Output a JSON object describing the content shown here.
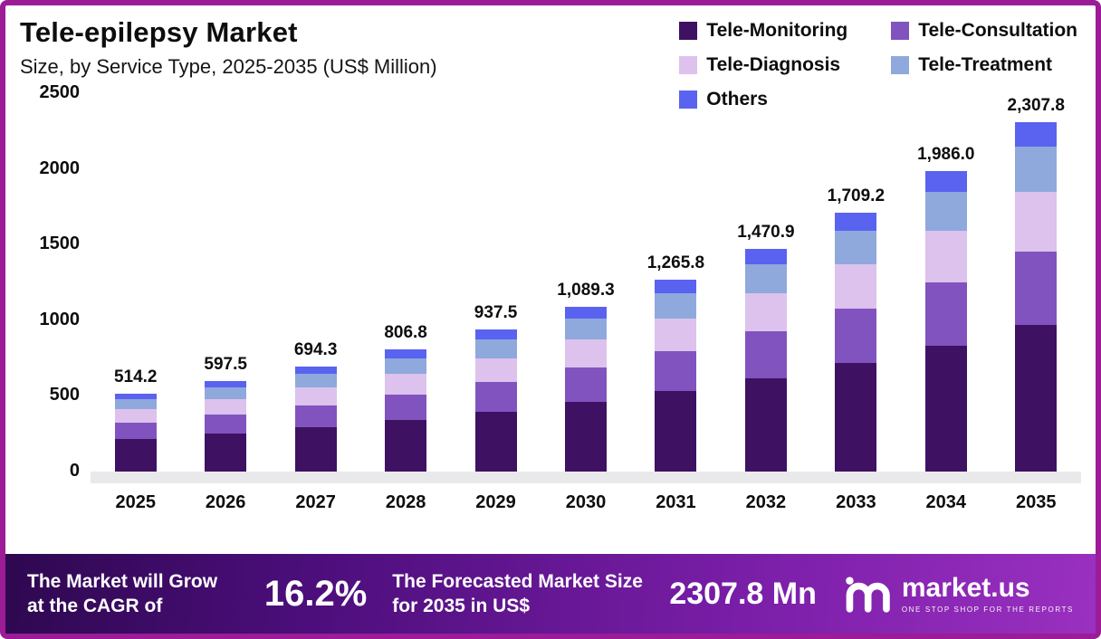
{
  "frame": {
    "border_color": "#9C1B96"
  },
  "header": {
    "title": "Tele-epilepsy Market",
    "subtitle": "Size, by Service Type, 2025-2035 (US$ Million)"
  },
  "banner": {
    "cagr_text": "The Market will Grow at the CAGR of",
    "cagr_value": "16.2%",
    "forecast_text": "The Forecasted Market Size for 2035 in US$",
    "forecast_value": "2307.8 Mn",
    "brand": "market.us",
    "brand_tagline": "ONE STOP SHOP FOR THE REPORTS"
  },
  "chart_data": {
    "type": "bar",
    "stacked": true,
    "title": "Tele-epilepsy Market",
    "subtitle": "Size, by Service Type, 2025-2035 (US$ Million)",
    "xlabel": "",
    "ylabel": "",
    "ylim": [
      0,
      2500
    ],
    "yticks": [
      0,
      500,
      1000,
      1500,
      2000,
      2500
    ],
    "grid": false,
    "legend_position": "top-right",
    "categories": [
      "2025",
      "2026",
      "2027",
      "2028",
      "2029",
      "2030",
      "2031",
      "2032",
      "2033",
      "2034",
      "2035"
    ],
    "totals": [
      514.2,
      597.5,
      694.3,
      806.8,
      937.5,
      1089.3,
      1265.8,
      1470.9,
      1709.2,
      1986.0,
      2307.8
    ],
    "total_labels": [
      "514.2",
      "597.5",
      "694.3",
      "806.8",
      "937.5",
      "1,089.3",
      "1,265.8",
      "1,470.9",
      "1,709.2",
      "1,986.0",
      "2,307.8"
    ],
    "series": [
      {
        "name": "Tele-Monitoring",
        "color": "#3E1163",
        "values": [
          216,
          251,
          292,
          339,
          394,
          458,
          532,
          618,
          718,
          834,
          969
        ]
      },
      {
        "name": "Tele-Consultation",
        "color": "#8153BF",
        "values": [
          108,
          125,
          146,
          169,
          197,
          229,
          266,
          309,
          359,
          417,
          485
        ]
      },
      {
        "name": "Tele-Diagnosis",
        "color": "#DCC2EC",
        "values": [
          87,
          102,
          118,
          137,
          159,
          185,
          215,
          250,
          291,
          338,
          392
        ]
      },
      {
        "name": "Tele-Treatment",
        "color": "#8FA9DC",
        "values": [
          67,
          78,
          90,
          105,
          122,
          142,
          165,
          191,
          222,
          258,
          300
        ]
      },
      {
        "name": "Others",
        "color": "#5A62F0",
        "values": [
          36,
          42,
          48,
          57,
          66,
          76,
          88,
          103,
          119,
          139,
          162
        ]
      }
    ]
  }
}
